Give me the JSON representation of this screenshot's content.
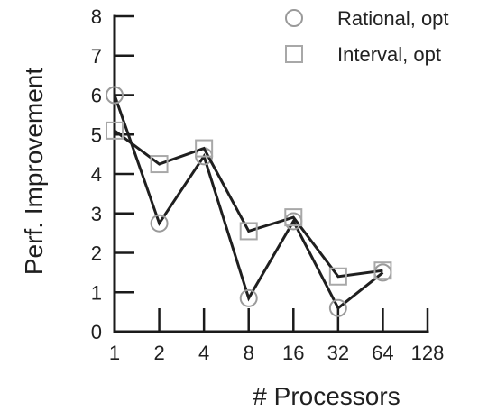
{
  "chart_data": {
    "type": "line",
    "xlabel": "# Processors",
    "ylabel": "Perf. Improvement",
    "x_ticks": [
      "1",
      "2",
      "4",
      "8",
      "16",
      "32",
      "64",
      "128"
    ],
    "y_ticks": [
      "0",
      "1",
      "2",
      "3",
      "4",
      "5",
      "6",
      "7",
      "8"
    ],
    "ylim": [
      0,
      8
    ],
    "x_scale": "log2",
    "grid": false,
    "legend_position": "top-right",
    "x": [
      1,
      2,
      4,
      8,
      16,
      32,
      64
    ],
    "series": [
      {
        "name": "Rational, opt",
        "marker": "circle",
        "values": [
          6.0,
          2.75,
          4.45,
          0.85,
          2.8,
          0.6,
          1.5
        ]
      },
      {
        "name": "Interval, opt",
        "marker": "square",
        "values": [
          5.1,
          4.25,
          4.65,
          2.55,
          2.9,
          1.4,
          1.55
        ]
      }
    ],
    "colors": {
      "line": "#1f1f1f",
      "marker": "#a0a0a0",
      "axis": "#1a1a1a"
    }
  }
}
